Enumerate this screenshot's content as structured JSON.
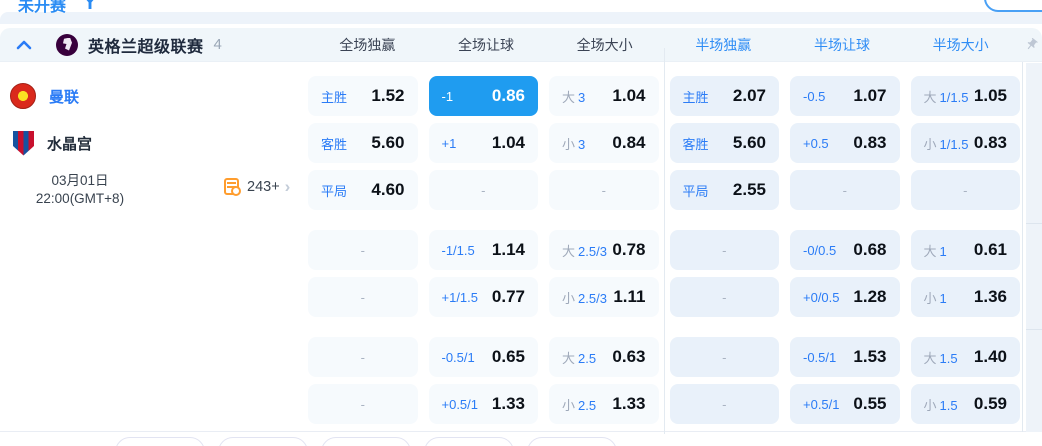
{
  "top_bar": {
    "status_label": "未开赛"
  },
  "league": {
    "name": "英格兰超级联赛",
    "count": "4"
  },
  "columns": [
    {
      "label": "全场独赢",
      "accent": false
    },
    {
      "label": "全场让球",
      "accent": false
    },
    {
      "label": "全场大小",
      "accent": false
    },
    {
      "label": "半场独赢",
      "accent": true
    },
    {
      "label": "半场让球",
      "accent": true
    },
    {
      "label": "半场大小",
      "accent": true
    }
  ],
  "match": {
    "home": "曼联",
    "away": "水晶宫",
    "date": "03月01日",
    "time": "22:00(GMT+8)",
    "markets": "243+",
    "markets_chevron": "›"
  },
  "icons": {
    "collapse": "chevron-up-icon",
    "league_logo": "premier-league-lion-icon",
    "home_crest": "manchester-united-crest",
    "away_crest": "crystal-palace-crest",
    "markets": "stats-document-clock-icon",
    "pin": "pushpin-icon",
    "status_filter": "filter-funnel-icon"
  },
  "colors": {
    "accent_blue": "#2b7cf6",
    "header_accent": "#2f8df5",
    "selected_cell_bg": "#1f9cf0",
    "full_cell_bg": "#f6fafd",
    "half_cell_bg": "#e9f1fa",
    "league_bar_bg": "#f0f6fa",
    "value_text": "#0c1118",
    "gray_text": "#9fa9ba",
    "orange": "#ff9d2e",
    "pl_purple": "#38003c"
  },
  "odds_rows": [
    {
      "cells": [
        {
          "label": "主胜",
          "value": "1.52"
        },
        {
          "label": "-1",
          "value": "0.86",
          "selected": true
        },
        {
          "prefix": "大",
          "label": "3",
          "value": "1.04"
        },
        {
          "label": "主胜",
          "value": "2.07"
        },
        {
          "label": "-0.5",
          "value": "1.07"
        },
        {
          "prefix": "大",
          "label": "1/1.5",
          "value": "1.05"
        }
      ]
    },
    {
      "cells": [
        {
          "label": "客胜",
          "value": "5.60"
        },
        {
          "label": "+1",
          "value": "1.04"
        },
        {
          "prefix": "小",
          "label": "3",
          "value": "0.84"
        },
        {
          "label": "客胜",
          "value": "5.60"
        },
        {
          "label": "+0.5",
          "value": "0.83"
        },
        {
          "prefix": "小",
          "label": "1/1.5",
          "value": "0.83"
        }
      ]
    },
    {
      "cells": [
        {
          "label": "平局",
          "value": "4.60"
        },
        {
          "dash": "-"
        },
        {
          "dash": "-"
        },
        {
          "label": "平局",
          "value": "2.55"
        },
        {
          "dash": "-"
        },
        {
          "dash": "-"
        }
      ]
    },
    {
      "cells": [
        {
          "dash": "-"
        },
        {
          "label": "-1/1.5",
          "value": "1.14"
        },
        {
          "prefix": "大",
          "label": "2.5/3",
          "value": "0.78"
        },
        {
          "dash": "-"
        },
        {
          "label": "-0/0.5",
          "value": "0.68"
        },
        {
          "prefix": "大",
          "label": "1",
          "value": "0.61"
        }
      ]
    },
    {
      "cells": [
        {
          "dash": "-"
        },
        {
          "label": "+1/1.5",
          "value": "0.77"
        },
        {
          "prefix": "小",
          "label": "2.5/3",
          "value": "1.11"
        },
        {
          "dash": "-"
        },
        {
          "label": "+0/0.5",
          "value": "1.28"
        },
        {
          "prefix": "小",
          "label": "1",
          "value": "1.36"
        }
      ]
    },
    {
      "cells": [
        {
          "dash": "-"
        },
        {
          "label": "-0.5/1",
          "value": "0.65"
        },
        {
          "prefix": "大",
          "label": "2.5",
          "value": "0.63"
        },
        {
          "dash": "-"
        },
        {
          "label": "-0.5/1",
          "value": "1.53"
        },
        {
          "prefix": "大",
          "label": "1.5",
          "value": "1.40"
        }
      ]
    },
    {
      "cells": [
        {
          "dash": "-"
        },
        {
          "label": "+0.5/1",
          "value": "1.33"
        },
        {
          "prefix": "小",
          "label": "2.5",
          "value": "1.33"
        },
        {
          "dash": "-"
        },
        {
          "label": "+0.5/1",
          "value": "0.55"
        },
        {
          "prefix": "小",
          "label": "1.5",
          "value": "0.59"
        }
      ]
    }
  ],
  "group_starts": [
    3,
    5
  ],
  "bottom_pills": {
    "count": 5
  }
}
